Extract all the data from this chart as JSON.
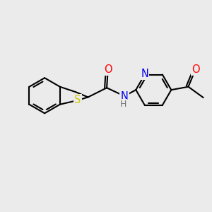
{
  "background_color": "#ebebeb",
  "bond_color": "#000000",
  "bond_width": 1.5,
  "atom_colors": {
    "S": "#cccc00",
    "N": "#0000ee",
    "O": "#ff0000",
    "H": "#777777"
  },
  "font_size": 9.5,
  "figsize": [
    3.0,
    3.0
  ],
  "dpi": 100
}
